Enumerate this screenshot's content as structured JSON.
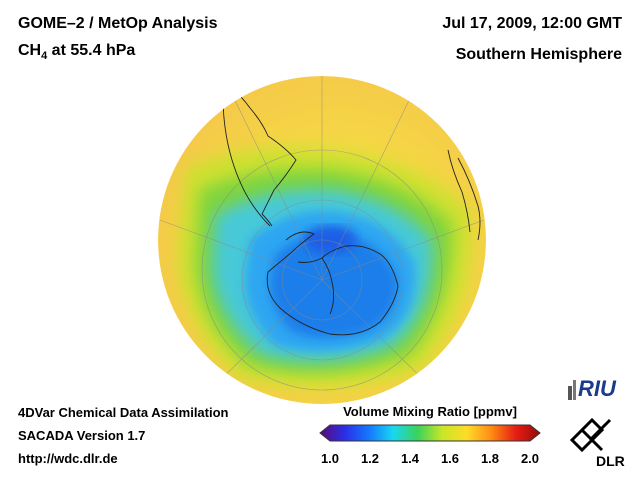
{
  "header": {
    "title": "GOME–2 / MetOp Analysis",
    "species": "CH",
    "species_sub": "4",
    "species_level": " at 55.4 hPa",
    "datetime": "Jul 17, 2009, 12:00 GMT",
    "region": "Southern Hemisphere"
  },
  "footer": {
    "line1": "4DVar Chemical Data Assimilation",
    "line2": "SACADA Version 1.7",
    "line3": "http://wdc.dlr.de"
  },
  "colorbar": {
    "title": "Volume Mixing Ratio [ppmv]",
    "ticks": [
      "1.0",
      "1.2",
      "1.4",
      "1.6",
      "1.8",
      "2.0"
    ],
    "colors": [
      "#5a0a78",
      "#2d2de6",
      "#1478ff",
      "#19d7f0",
      "#3cd25a",
      "#c8e628",
      "#ffdc28",
      "#ff8c14",
      "#e61e14",
      "#960a0a"
    ]
  },
  "logos": {
    "riu": "RIU",
    "dlr": "DLR"
  },
  "chart_data": {
    "type": "heatmap",
    "title": "GOME–2 / MetOp Analysis — CH4 at 55.4 hPa",
    "projection": "orthographic, Southern Hemisphere",
    "variable": "Volume Mixing Ratio [ppmv]",
    "range": [
      1.0,
      2.0
    ],
    "features": [
      {
        "region": "Antarctic polar vortex core",
        "value_approx": 1.2
      },
      {
        "region": "Vortex edge ring",
        "value_approx": 1.4
      },
      {
        "region": "Mid latitudes",
        "value_approx": 1.5
      },
      {
        "region": "Subtropics",
        "value_approx": 1.7
      }
    ]
  }
}
